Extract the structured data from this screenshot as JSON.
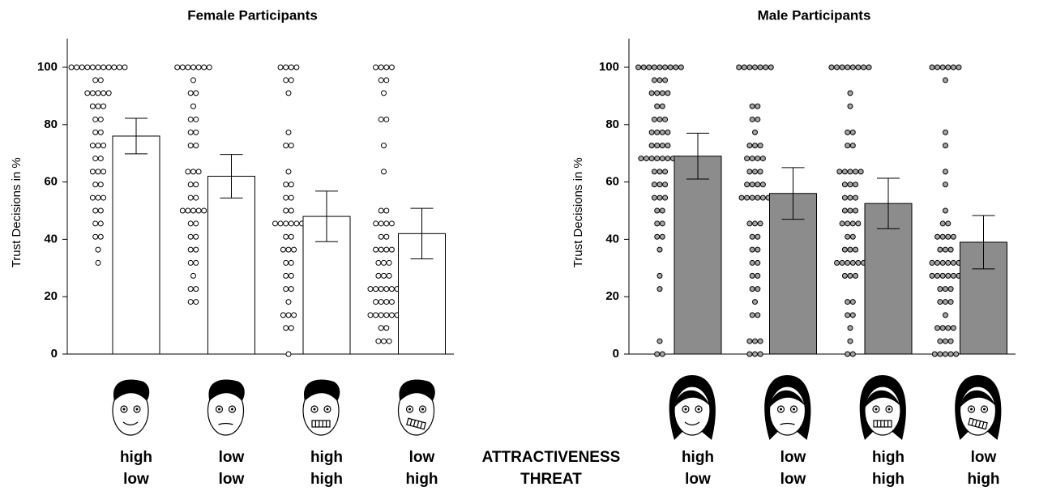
{
  "chart_data": [
    {
      "type": "bar_dot",
      "title": "Female Participants",
      "y_label": "Trust Decisions in %",
      "categories": [
        "high low",
        "low low",
        "high high",
        "low high"
      ],
      "attractiveness": [
        "high",
        "low",
        "high",
        "low"
      ],
      "threat": [
        "low",
        "low",
        "high",
        "high"
      ],
      "values": [
        76,
        62,
        48,
        42
      ],
      "errors": [
        6.2,
        7.6,
        8.8,
        8.8
      ],
      "color": "#ffffff",
      "dot_color": "#ffffff",
      "dots": [
        [
          100,
          100,
          100,
          100,
          100,
          100,
          100,
          100,
          100,
          100,
          100,
          95.5,
          95.5,
          91,
          91,
          91,
          91,
          91,
          86.4,
          86.4,
          86.4,
          81.8,
          81.8,
          77.3,
          77.3,
          72.7,
          72.7,
          72.7,
          68.2,
          68.2,
          63.6,
          63.6,
          63.6,
          59.1,
          59.1,
          54.5,
          54.5,
          54.5,
          50,
          50,
          45.5,
          45.5,
          40.9,
          40.9,
          36.4,
          31.8
        ],
        [
          100,
          100,
          100,
          100,
          100,
          100,
          100,
          95.5,
          91,
          91,
          86.4,
          81.8,
          81.8,
          77.3,
          77.3,
          72.7,
          72.7,
          63.6,
          63.6,
          63.6,
          59.1,
          59.1,
          54.5,
          54.5,
          50,
          50,
          50,
          50,
          50,
          45.5,
          45.5,
          40.9,
          40.9,
          36.4,
          36.4,
          31.8,
          31.8,
          27.3,
          22.7,
          22.7,
          18.2,
          18.2
        ],
        [
          100,
          100,
          100,
          100,
          95.5,
          95.5,
          91,
          77.3,
          72.7,
          72.7,
          63.6,
          59.1,
          59.1,
          54.5,
          54.5,
          50,
          50,
          45.5,
          45.5,
          45.5,
          45.5,
          45.5,
          45.5,
          40.9,
          40.9,
          36.4,
          36.4,
          36.4,
          31.8,
          31.8,
          27.3,
          27.3,
          22.7,
          22.7,
          18.2,
          13.6,
          13.6,
          13.6,
          9.1,
          9.1,
          0
        ],
        [
          100,
          100,
          100,
          100,
          95.5,
          95.5,
          91,
          81.8,
          81.8,
          72.7,
          63.6,
          50,
          50,
          45.5,
          45.5,
          45.5,
          45.5,
          40.9,
          40.9,
          36.4,
          36.4,
          36.4,
          36.4,
          31.8,
          31.8,
          31.8,
          27.3,
          27.3,
          27.3,
          22.7,
          22.7,
          22.7,
          22.7,
          22.7,
          22.7,
          18.2,
          18.2,
          18.2,
          18.2,
          13.6,
          13.6,
          13.6,
          13.6,
          13.6,
          13.6,
          9.1,
          9.1,
          4.5,
          4.5,
          4.5
        ]
      ],
      "ylim": [
        0,
        110
      ],
      "yticks": [
        0,
        20,
        40,
        60,
        80,
        100
      ]
    },
    {
      "type": "bar_dot",
      "title": "Male Participants",
      "y_label": "Trust Decisions in %",
      "categories": [
        "high low",
        "low low",
        "high high",
        "low high"
      ],
      "attractiveness": [
        "high",
        "low",
        "high",
        "low"
      ],
      "threat": [
        "low",
        "low",
        "high",
        "high"
      ],
      "values": [
        69,
        56,
        52.5,
        39
      ],
      "errors": [
        8,
        9,
        8.8,
        9.3
      ],
      "color": "#8c8c8c",
      "dot_color": "#a6a6a6",
      "dots": [
        [
          100,
          100,
          100,
          100,
          100,
          100,
          100,
          100,
          100,
          95.5,
          95.5,
          95.5,
          91,
          91,
          91,
          91,
          86.4,
          86.4,
          81.8,
          81.8,
          81.8,
          77.3,
          77.3,
          77.3,
          77.3,
          72.7,
          72.7,
          72.7,
          72.7,
          68.2,
          68.2,
          68.2,
          68.2,
          68.2,
          68.2,
          68.2,
          68.2,
          63.6,
          63.6,
          63.6,
          59.1,
          59.1,
          59.1,
          54.5,
          54.5,
          54.5,
          50,
          50,
          45.5,
          45.5,
          40.9,
          40.9,
          36.4,
          27.3,
          22.7,
          4.5,
          0,
          0
        ],
        [
          100,
          100,
          100,
          100,
          100,
          100,
          100,
          86.4,
          86.4,
          81.8,
          81.8,
          77.3,
          72.7,
          72.7,
          72.7,
          68.2,
          68.2,
          68.2,
          68.2,
          63.6,
          63.6,
          63.6,
          59.1,
          59.1,
          59.1,
          59.1,
          54.5,
          54.5,
          54.5,
          54.5,
          54.5,
          54.5,
          45.5,
          45.5,
          45.5,
          40.9,
          40.9,
          36.4,
          36.4,
          31.8,
          31.8,
          27.3,
          27.3,
          22.7,
          22.7,
          18.2,
          13.6,
          13.6,
          4.5,
          4.5,
          4.5,
          0,
          0,
          0
        ],
        [
          100,
          100,
          100,
          100,
          100,
          100,
          100,
          100,
          91,
          86.4,
          77.3,
          77.3,
          72.7,
          72.7,
          63.6,
          63.6,
          63.6,
          63.6,
          63.6,
          59.1,
          59.1,
          59.1,
          54.5,
          54.5,
          54.5,
          50,
          50,
          50,
          45.5,
          45.5,
          45.5,
          45.5,
          40.9,
          40.9,
          36.4,
          36.4,
          36.4,
          31.8,
          31.8,
          31.8,
          31.8,
          31.8,
          31.8,
          27.3,
          27.3,
          27.3,
          18.2,
          18.2,
          13.6,
          13.6,
          9.1,
          4.5,
          0,
          0
        ],
        [
          100,
          100,
          100,
          100,
          100,
          100,
          95.5,
          77.3,
          72.7,
          63.6,
          59.1,
          50,
          45.5,
          45.5,
          40.9,
          40.9,
          40.9,
          40.9,
          36.4,
          36.4,
          36.4,
          31.8,
          31.8,
          31.8,
          31.8,
          31.8,
          31.8,
          27.3,
          27.3,
          27.3,
          27.3,
          27.3,
          27.3,
          22.7,
          22.7,
          22.7,
          18.2,
          18.2,
          18.2,
          13.6,
          9.1,
          9.1,
          9.1,
          9.1,
          4.5,
          4.5,
          4.5,
          0,
          0,
          0,
          0,
          0
        ]
      ],
      "ylim": [
        0,
        110
      ],
      "yticks": [
        0,
        20,
        40,
        60,
        80,
        100
      ]
    }
  ],
  "row_labels": [
    "ATTRACTIVENESS",
    "THREAT"
  ]
}
